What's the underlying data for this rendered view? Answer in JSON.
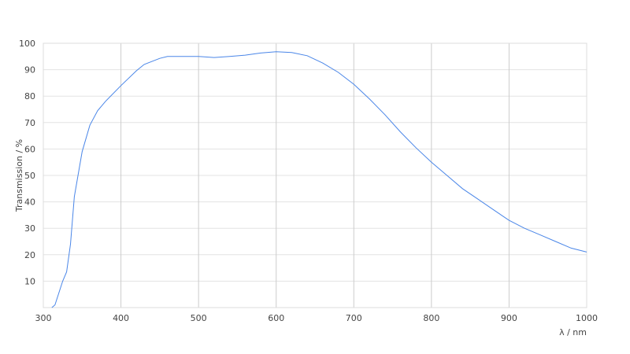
{
  "chart_data": {
    "type": "line",
    "title": "",
    "xlabel": "λ / nm",
    "ylabel": "Transmission / %",
    "xlim": [
      300,
      1000
    ],
    "ylim": [
      0,
      100
    ],
    "xticks": [
      300,
      400,
      500,
      600,
      700,
      800,
      900,
      1000
    ],
    "yticks": [
      10,
      20,
      30,
      40,
      50,
      60,
      70,
      80,
      90,
      100
    ],
    "grid": true,
    "line_color": "#4a86e8",
    "series": [
      {
        "x": [
          311,
          315,
          325,
          330,
          335,
          340,
          350,
          360,
          370,
          380,
          400,
          420,
          430,
          450,
          460,
          480,
          500,
          520,
          540,
          560,
          580,
          600,
          620,
          640,
          660,
          680,
          700,
          720,
          740,
          760,
          780,
          800,
          820,
          840,
          860,
          880,
          900,
          920,
          940,
          960,
          980,
          1000
        ],
        "y": [
          0,
          1,
          10,
          13.5,
          24,
          42,
          59,
          69,
          74.5,
          78,
          84,
          89.6,
          92,
          94.3,
          95,
          95,
          95,
          94.6,
          95,
          95.5,
          96.3,
          96.8,
          96.5,
          95.3,
          92.5,
          89,
          84.5,
          79,
          73,
          66.5,
          60.5,
          55,
          50,
          45,
          41,
          37,
          33,
          30,
          27.5,
          25,
          22.5,
          21
        ]
      }
    ]
  }
}
